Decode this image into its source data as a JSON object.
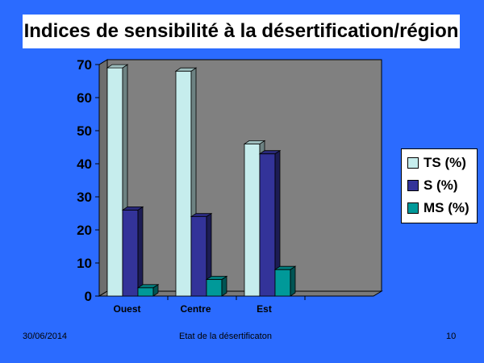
{
  "title": "Indices de sensibilité à la désertification/région",
  "chart_data": {
    "type": "bar",
    "categories": [
      "Ouest",
      "Centre",
      "Est",
      ""
    ],
    "series": [
      {
        "name": "TS (%)",
        "values": [
          69,
          68,
          46,
          null
        ],
        "color": "#c6eded"
      },
      {
        "name": "S (%)",
        "values": [
          26,
          24,
          43,
          null
        ],
        "color": "#333399"
      },
      {
        "name": "MS (%)",
        "values": [
          2.5,
          5,
          8,
          null
        ],
        "color": "#009999"
      }
    ],
    "yticks": [
      0,
      10,
      20,
      30,
      40,
      50,
      60,
      70
    ],
    "ylim": [
      0,
      70
    ],
    "grid": false,
    "legend_position": "right",
    "three_d": true
  },
  "footer": {
    "date": "30/06/2014",
    "center": "Etat de la désertificaton",
    "page": "10"
  }
}
